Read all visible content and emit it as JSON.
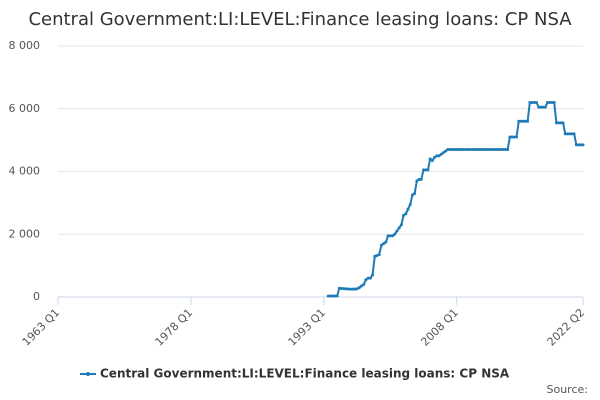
{
  "chart_data": {
    "type": "line",
    "title": "Central Government:LI:LEVEL:Finance leasing loans: CP NSA",
    "source": "Source:",
    "xlim": [
      "1963 Q1",
      "2022 Q2"
    ],
    "xticks": [
      "1963 Q1",
      "1978 Q1",
      "1993 Q1",
      "2008 Q1",
      "2022 Q2"
    ],
    "ylim": [
      0,
      8000
    ],
    "yticks": [
      0,
      {
        "value": 2000,
        "label": "2 000"
      },
      {
        "value": 4000,
        "label": "4 000"
      },
      {
        "value": 6000,
        "label": "6 000"
      },
      {
        "value": 8000,
        "label": "8 000"
      }
    ],
    "grid": true,
    "legend": "bottom",
    "x": [
      "1993 Q3",
      "1993 Q4",
      "1994 Q1",
      "1994 Q2",
      "1994 Q3",
      "1994 Q4",
      "1995 Q1",
      "1995 Q2",
      "1995 Q3",
      "1995 Q4",
      "1996 Q1",
      "1996 Q2",
      "1996 Q3",
      "1996 Q4",
      "1997 Q1",
      "1997 Q2",
      "1997 Q3",
      "1997 Q4",
      "1998 Q1",
      "1998 Q2",
      "1998 Q3",
      "1998 Q4",
      "1999 Q1",
      "1999 Q2",
      "1999 Q3",
      "1999 Q4",
      "2000 Q1",
      "2000 Q2",
      "2000 Q3",
      "2000 Q4",
      "2001 Q1",
      "2001 Q2",
      "2001 Q3",
      "2001 Q4",
      "2002 Q1",
      "2002 Q2",
      "2002 Q3",
      "2002 Q4",
      "2003 Q1",
      "2003 Q2",
      "2003 Q3",
      "2003 Q4",
      "2004 Q1",
      "2004 Q2",
      "2004 Q3",
      "2004 Q4",
      "2005 Q1",
      "2005 Q2",
      "2005 Q3",
      "2005 Q4",
      "2006 Q1",
      "2006 Q2",
      "2006 Q3",
      "2006 Q4",
      "2007 Q1",
      "2007 Q2",
      "2007 Q3",
      "2007 Q4",
      "2008 Q1",
      "2008 Q2",
      "2008 Q3",
      "2008 Q4",
      "2009 Q1",
      "2009 Q2",
      "2009 Q3",
      "2009 Q4",
      "2010 Q1",
      "2010 Q2",
      "2010 Q3",
      "2010 Q4",
      "2011 Q1",
      "2011 Q2",
      "2011 Q3",
      "2011 Q4",
      "2012 Q1",
      "2012 Q2",
      "2012 Q3",
      "2012 Q4",
      "2013 Q1",
      "2013 Q2",
      "2013 Q3",
      "2013 Q4",
      "2014 Q1",
      "2014 Q2",
      "2014 Q3",
      "2014 Q4",
      "2015 Q1",
      "2015 Q2",
      "2015 Q3",
      "2015 Q4",
      "2016 Q1",
      "2016 Q2",
      "2016 Q3",
      "2016 Q4",
      "2017 Q1",
      "2017 Q2",
      "2017 Q3",
      "2017 Q4",
      "2018 Q1",
      "2018 Q2",
      "2018 Q3",
      "2018 Q4",
      "2019 Q1",
      "2019 Q2",
      "2019 Q3",
      "2019 Q4",
      "2020 Q1",
      "2020 Q2",
      "2020 Q3",
      "2020 Q4",
      "2021 Q1",
      "2021 Q2",
      "2021 Q3",
      "2021 Q4",
      "2022 Q1",
      "2022 Q2"
    ],
    "series": [
      {
        "name": "Central Government:LI:LEVEL:Finance leasing loans: CP NSA",
        "color": "#1f7ab8",
        "values": [
          30,
          30,
          30,
          30,
          30,
          280,
          270,
          265,
          260,
          255,
          250,
          250,
          255,
          260,
          300,
          350,
          400,
          550,
          600,
          600,
          700,
          1300,
          1320,
          1350,
          1650,
          1700,
          1750,
          1950,
          1950,
          1950,
          2000,
          2100,
          2200,
          2300,
          2600,
          2650,
          2800,
          2950,
          3250,
          3300,
          3700,
          3750,
          3750,
          4050,
          4050,
          4050,
          4400,
          4350,
          4450,
          4500,
          4500,
          4550,
          4600,
          4650,
          4700,
          4700,
          4700,
          4700,
          4700,
          4700,
          4700,
          4700,
          4700,
          4700,
          4700,
          4700,
          4700,
          4700,
          4700,
          4700,
          4700,
          4700,
          4700,
          4700,
          4700,
          4700,
          4700,
          4700,
          4700,
          4700,
          4700,
          4700,
          5100,
          5100,
          5100,
          5100,
          5600,
          5600,
          5600,
          5600,
          5600,
          6200,
          6200,
          6200,
          6200,
          6050,
          6050,
          6050,
          6050,
          6200,
          6200,
          6200,
          6200,
          5550,
          5550,
          5550,
          5550,
          5200,
          5200,
          5200,
          5200,
          5200,
          4850,
          4850,
          4850,
          4850
        ]
      }
    ]
  }
}
